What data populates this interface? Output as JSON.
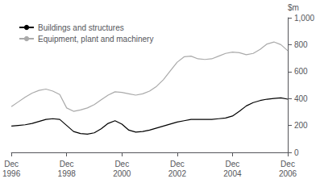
{
  "chart_data": {
    "type": "line",
    "ylabel": "$m",
    "categories": [
      "Dec\n1996",
      null,
      null,
      null,
      null,
      null,
      null,
      null,
      "Dec\n1998",
      null,
      null,
      null,
      null,
      null,
      null,
      null,
      "Dec\n2000",
      null,
      null,
      null,
      null,
      null,
      null,
      null,
      "Dec\n2002",
      null,
      null,
      null,
      null,
      null,
      null,
      null,
      "Dec\n2004",
      null,
      null,
      null,
      null,
      null,
      null,
      null,
      "Dec\n2006"
    ],
    "series": [
      {
        "name": "Buildings and structures",
        "color": "#000000",
        "values": [
          195,
          200,
          205,
          215,
          230,
          245,
          250,
          245,
          200,
          155,
          140,
          135,
          145,
          175,
          215,
          235,
          210,
          165,
          150,
          155,
          165,
          180,
          195,
          210,
          225,
          235,
          245,
          245,
          245,
          245,
          250,
          255,
          270,
          305,
          345,
          370,
          385,
          395,
          400,
          405,
          395
        ]
      },
      {
        "name": "Equipment, plant and machinery",
        "color": "#aaaaaa",
        "values": [
          340,
          375,
          410,
          440,
          460,
          470,
          455,
          430,
          330,
          305,
          315,
          330,
          355,
          390,
          425,
          450,
          445,
          435,
          425,
          435,
          455,
          490,
          540,
          605,
          670,
          710,
          715,
          695,
          690,
          695,
          715,
          735,
          745,
          740,
          725,
          735,
          765,
          805,
          820,
          800,
          755
        ]
      }
    ],
    "ylim": [
      0,
      1000
    ],
    "yticks": [
      0,
      200,
      400,
      600,
      800,
      1000
    ],
    "grid": false,
    "legend": "upper left"
  }
}
